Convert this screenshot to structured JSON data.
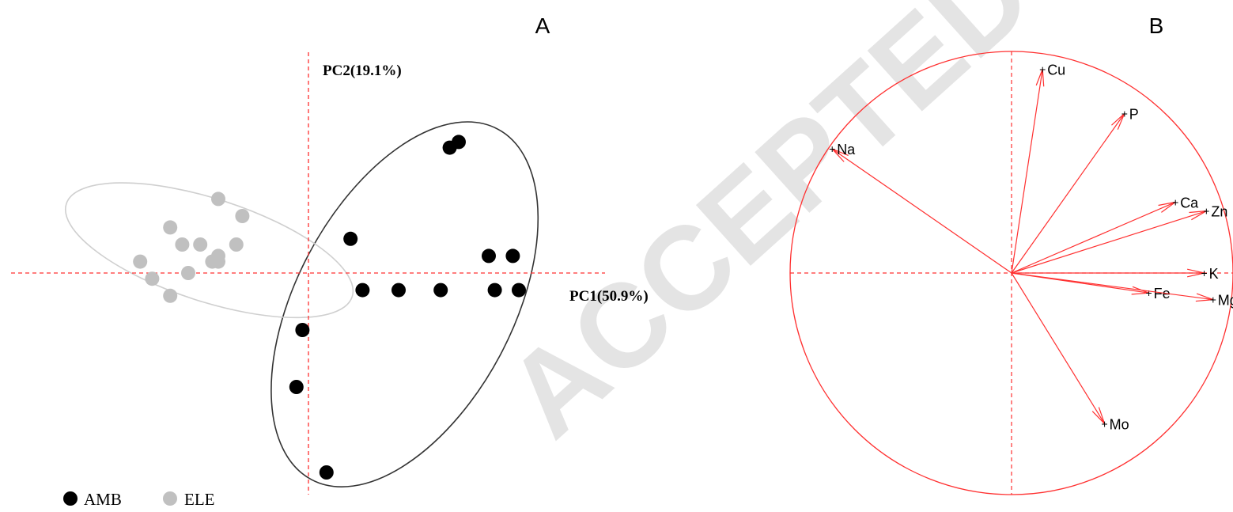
{
  "chart_data": [
    {
      "type": "scatter",
      "panel_label": "A",
      "xlabel": "PC1(50.9%)",
      "ylabel": "PC2(19.1%)",
      "colors": {
        "AMB": "#000000",
        "ELE": "#c0c0c0",
        "axes": "#ff3030"
      },
      "legend": {
        "placement": "bottom-left",
        "entries": [
          "AMB",
          "ELE"
        ]
      },
      "series": [
        {
          "name": "AMB",
          "x": [
            -0.1,
            -0.2,
            0.3,
            1.5,
            2.35,
            2.5,
            3.0,
            3.4,
            3.1,
            3.5,
            2.2,
            0.9,
            0.7
          ],
          "y": [
            -1.0,
            -2.0,
            -3.5,
            -0.3,
            2.2,
            2.3,
            0.3,
            0.3,
            -0.3,
            -0.3,
            -0.3,
            -0.3,
            0.6
          ],
          "ellipse": {
            "cx": 1.6,
            "cy": -0.55,
            "rx": 3.3,
            "ry": 1.9,
            "rotation_deg": -62
          }
        },
        {
          "name": "ELE",
          "x": [
            -1.5,
            -1.1,
            -1.2,
            -1.8,
            -2.0,
            -2.3,
            -2.1,
            -2.3,
            -1.6,
            -1.5,
            -1.5,
            -2.8,
            -2.6
          ],
          "y": [
            1.3,
            1.0,
            0.5,
            0.5,
            0.0,
            -0.4,
            0.5,
            0.8,
            0.2,
            0.2,
            0.3,
            0.2,
            -0.1
          ],
          "ellipse": {
            "cx": -1.65,
            "cy": 0.4,
            "rx": 2.5,
            "ry": 0.9,
            "rotation_deg": 18
          }
        }
      ]
    },
    {
      "type": "scatter",
      "panel_label": "B",
      "subtype": "correlation-circle",
      "xlim": [
        -1,
        1
      ],
      "ylim": [
        -1,
        1
      ],
      "colors": {
        "circle": "#ff3030",
        "arrows": "#ff3030",
        "labels": "#000000"
      },
      "variables": [
        {
          "name": "Cu",
          "x": 0.14,
          "y": 0.92
        },
        {
          "name": "P",
          "x": 0.51,
          "y": 0.72
        },
        {
          "name": "Na",
          "x": -0.81,
          "y": 0.56
        },
        {
          "name": "Ca",
          "x": 0.74,
          "y": 0.32
        },
        {
          "name": "Zn",
          "x": 0.88,
          "y": 0.28
        },
        {
          "name": "K",
          "x": 0.87,
          "y": 0.0
        },
        {
          "name": "Fe",
          "x": 0.62,
          "y": -0.09
        },
        {
          "name": "Mg",
          "x": 0.91,
          "y": -0.12
        },
        {
          "name": "Mo",
          "x": 0.42,
          "y": -0.68
        }
      ]
    }
  ]
}
